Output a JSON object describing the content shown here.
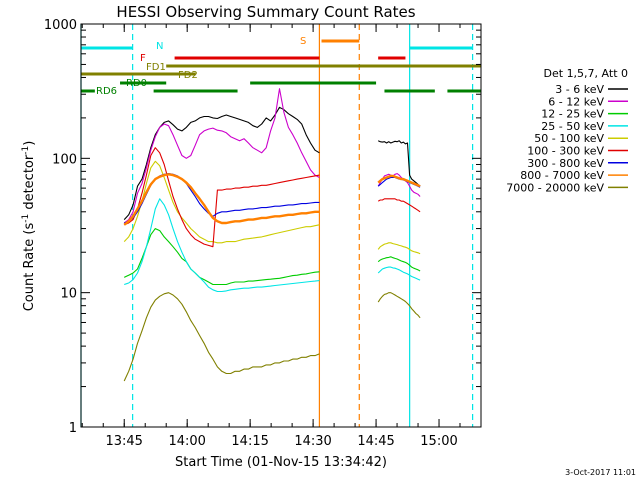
{
  "chart_data": {
    "type": "line",
    "title": "HESSI Observing Summary Count Rates",
    "xlabel": "Start Time (01-Nov-15 13:34:42)",
    "ylabel_main": "Count Rate (s",
    "ylabel_sup1": "-1",
    "ylabel_mid": " detector",
    "ylabel_sup2": "-1",
    "ylabel_end": ")",
    "y_scale": "log",
    "ylim": [
      1,
      1000
    ],
    "xlim": [
      "13:34:42",
      "15:10:00"
    ],
    "x_ticks": [
      "13:45",
      "14:00",
      "14:15",
      "14:30",
      "14:45",
      "15:00"
    ],
    "y_ticks": [
      "1",
      "10",
      "100",
      "1000"
    ],
    "legend_header": "Det 1,5,7, Att 0",
    "timestamp": "3-Oct-2017 11:01",
    "segments": [
      [
        "13:45:00",
        "14:31:30"
      ],
      [
        "14:45:30",
        "14:55:30"
      ]
    ],
    "series": [
      {
        "name": "3 - 6 keV",
        "color": "#000000",
        "values": [
          [
            35,
            38,
            45,
            62,
            70,
            90,
            120,
            150,
            170,
            185,
            190,
            178,
            165,
            160,
            170,
            185,
            190,
            200,
            205,
            205,
            200,
            198,
            205,
            210,
            205,
            200,
            195,
            190,
            185,
            175,
            170,
            180,
            200,
            190,
            210,
            240,
            230,
            215,
            205,
            195,
            180,
            150,
            130,
            115,
            110
          ],
          [
            135,
            133,
            132,
            133,
            130,
            133,
            130,
            132,
            134,
            133,
            135,
            130,
            132,
            128,
            130,
            75,
            70,
            68,
            66,
            64,
            62
          ]
        ]
      },
      {
        "name": "6 - 12 keV",
        "color": "#cc00cc",
        "values": [
          [
            33,
            35,
            40,
            55,
            65,
            85,
            115,
            145,
            170,
            180,
            175,
            150,
            125,
            105,
            100,
            105,
            125,
            150,
            160,
            165,
            168,
            162,
            160,
            155,
            145,
            140,
            135,
            140,
            130,
            120,
            115,
            110,
            120,
            160,
            200,
            330,
            220,
            170,
            150,
            130,
            110,
            95,
            82,
            75,
            72
          ],
          [
            62,
            66,
            70,
            74,
            75,
            76,
            75,
            74,
            76,
            77,
            75,
            72,
            70,
            68,
            66,
            62,
            58,
            56,
            55,
            54,
            52
          ]
        ]
      },
      {
        "name": "12 - 25 keV",
        "color": "#00cc00",
        "values": [
          [
            13,
            13.5,
            14,
            15,
            18,
            22,
            27,
            30,
            29,
            26,
            24,
            22,
            20,
            18,
            17,
            15,
            14,
            13,
            12.5,
            12,
            11.5,
            11.5,
            11.5,
            11.5,
            11.8,
            12,
            12,
            12,
            12.2,
            12.2,
            12.3,
            12.4,
            12.5,
            12.6,
            12.7,
            12.8,
            13,
            13.2,
            13.4,
            13.5,
            13.7,
            13.8,
            14,
            14.2,
            14.3
          ],
          [
            17,
            17.5,
            17.8,
            18,
            18.2,
            18.3,
            18.5,
            18.2,
            18,
            17.8,
            17.5,
            17.2,
            17,
            16.8,
            16.5,
            16,
            15.5,
            15.2,
            15,
            14.8,
            14.5
          ]
        ]
      },
      {
        "name": "25 - 50 keV",
        "color": "#00e5e5",
        "values": [
          [
            11.5,
            11.8,
            12.5,
            14,
            17,
            22,
            30,
            42,
            50,
            45,
            38,
            30,
            24,
            20,
            17,
            15,
            14,
            13,
            12,
            11,
            10.5,
            10.2,
            10.2,
            10.3,
            10.5,
            10.6,
            10.7,
            10.8,
            10.8,
            10.9,
            11,
            11,
            11.1,
            11.2,
            11.3,
            11.4,
            11.5,
            11.6,
            11.7,
            11.8,
            11.9,
            12,
            12.1,
            12.2,
            12.3
          ],
          [
            14,
            14.5,
            15,
            15.2,
            15.4,
            15.5,
            15.5,
            15.3,
            15.2,
            15,
            14.8,
            14.5,
            14.2,
            14,
            13.8,
            13.5,
            13.2,
            13,
            12.8,
            12.6,
            12.4
          ]
        ]
      },
      {
        "name": "50 - 100 keV",
        "color": "#cccc00",
        "values": [
          [
            24,
            26,
            30,
            37,
            48,
            65,
            85,
            95,
            88,
            72,
            58,
            47,
            40,
            36,
            33,
            30,
            28,
            26,
            25,
            24,
            24,
            23.5,
            23.5,
            24,
            24,
            24,
            24.5,
            25,
            25.2,
            25.5,
            25.8,
            26,
            26.5,
            27,
            27.5,
            28,
            28.5,
            29,
            29.5,
            30,
            30.5,
            31,
            31,
            31.5,
            32
          ],
          [
            21,
            22,
            22.5,
            23,
            23.2,
            23.5,
            23.5,
            23.2,
            23,
            22.8,
            22.5,
            22.3,
            22,
            21.8,
            21.5,
            21,
            20.5,
            20.2,
            20,
            19.8,
            19.5
          ]
        ]
      },
      {
        "name": "100 - 300 keV",
        "color": "#e00000",
        "values": [
          [
            32,
            33,
            35,
            42,
            55,
            75,
            105,
            120,
            110,
            90,
            68,
            52,
            42,
            35,
            30,
            27,
            25,
            24,
            23,
            22.5,
            22,
            58,
            58,
            59,
            59,
            60,
            60,
            61,
            61,
            62,
            62,
            63,
            63,
            64,
            65,
            66,
            67,
            68,
            69,
            70,
            71,
            72,
            73,
            74,
            75
          ],
          [
            48,
            49,
            49,
            50,
            50,
            50,
            50,
            50,
            50,
            49,
            49,
            48,
            48,
            47,
            46,
            45,
            44,
            43,
            42,
            41,
            40
          ]
        ]
      },
      {
        "name": "300 - 800 keV",
        "color": "#0000e0",
        "values": [
          [
            33,
            34,
            36,
            40,
            46,
            54,
            63,
            70,
            74,
            76,
            77,
            76,
            74,
            70,
            65,
            58,
            52,
            46,
            42,
            39,
            37,
            39,
            40,
            40,
            40.5,
            41,
            41,
            41.5,
            42,
            42,
            42.5,
            43,
            43,
            43.5,
            44,
            44,
            44.5,
            45,
            45,
            45.5,
            46,
            46,
            46.5,
            47,
            47
          ],
          [
            62,
            64,
            66,
            68,
            70,
            71,
            72,
            72,
            72,
            71,
            70,
            70,
            69,
            68,
            67,
            66,
            65,
            64,
            63,
            62,
            61
          ]
        ]
      },
      {
        "name": "800 - 7000 keV",
        "color": "#ff8000",
        "values": [
          [
            32,
            34,
            37,
            42,
            48,
            56,
            64,
            70,
            73,
            75,
            76,
            75,
            73,
            70,
            66,
            61,
            55,
            50,
            45,
            40,
            36,
            34,
            33,
            33,
            33.5,
            34,
            34,
            34.5,
            35,
            35,
            35.5,
            36,
            36,
            36.5,
            37,
            37,
            37.5,
            38,
            38,
            38.5,
            39,
            39,
            39.5,
            40,
            40
          ],
          [
            66,
            68,
            70,
            71,
            72,
            73,
            74,
            74,
            73,
            72,
            71,
            70,
            70,
            69,
            68,
            67,
            66,
            65,
            64,
            63,
            62
          ]
        ]
      },
      {
        "name": "7000 - 20000 keV",
        "color": "#808000",
        "values": [
          [
            2.2,
            2.6,
            3.2,
            4.2,
            5.2,
            6.5,
            7.8,
            8.8,
            9.4,
            9.8,
            10,
            9.6,
            9,
            8.2,
            7.2,
            6.2,
            5.5,
            4.8,
            4.2,
            3.6,
            3.2,
            2.8,
            2.6,
            2.5,
            2.5,
            2.6,
            2.6,
            2.7,
            2.7,
            2.8,
            2.8,
            2.8,
            2.9,
            2.9,
            3,
            3,
            3.1,
            3.1,
            3.2,
            3.2,
            3.3,
            3.3,
            3.4,
            3.4,
            3.5
          ],
          [
            8.5,
            9,
            9.4,
            9.7,
            9.8,
            10,
            10,
            9.8,
            9.6,
            9.4,
            9.2,
            9,
            8.8,
            8.6,
            8.3,
            8,
            7.6,
            7.3,
            7,
            6.8,
            6.5
          ]
        ]
      }
    ],
    "flag_lines": [
      {
        "label": "N",
        "color": "#00e5e5",
        "spans": [
          [
            "13:34:42",
            "13:47:00"
          ],
          [
            "14:53:00",
            "15:08:00"
          ]
        ]
      },
      {
        "label": "S",
        "color": "#ff8000",
        "spans": [
          [
            "14:32:00",
            "14:41:00"
          ]
        ]
      },
      {
        "label": "F",
        "color": "#e00000",
        "spans": [
          [
            "13:57:00",
            "14:31:30"
          ],
          [
            "14:45:30",
            "14:52:00"
          ]
        ]
      },
      {
        "label": "FD1",
        "color": "#808000",
        "spans": [
          [
            "13:55:00",
            "15:10:00"
          ]
        ]
      },
      {
        "label": "FD2",
        "color": "#808000",
        "spans": [
          [
            "13:34:42",
            "14:02:00"
          ]
        ]
      },
      {
        "label": "RD0",
        "color": "#008000",
        "spans": [
          [
            "13:44:00",
            "13:55:00"
          ],
          [
            "14:15:00",
            "14:45:00"
          ]
        ]
      },
      {
        "label": "RD6",
        "color": "#008000",
        "spans": [
          [
            "13:34:42",
            "13:38:00"
          ],
          [
            "13:52:00",
            "14:12:00"
          ],
          [
            "14:47:00",
            "14:59:00"
          ],
          [
            "15:02:00",
            "15:10:00"
          ]
        ]
      }
    ],
    "vertical_markers": [
      {
        "time": "13:34:42",
        "color": "#00e5e5",
        "style": "solid"
      },
      {
        "time": "13:47:00",
        "color": "#00e5e5",
        "style": "dashed"
      },
      {
        "time": "14:31:30",
        "color": "#ff8000",
        "style": "solid"
      },
      {
        "time": "14:41:00",
        "color": "#ff8000",
        "style": "dashed"
      },
      {
        "time": "14:53:00",
        "color": "#00e5e5",
        "style": "solid"
      },
      {
        "time": "15:08:00",
        "color": "#00e5e5",
        "style": "dashed"
      }
    ]
  }
}
